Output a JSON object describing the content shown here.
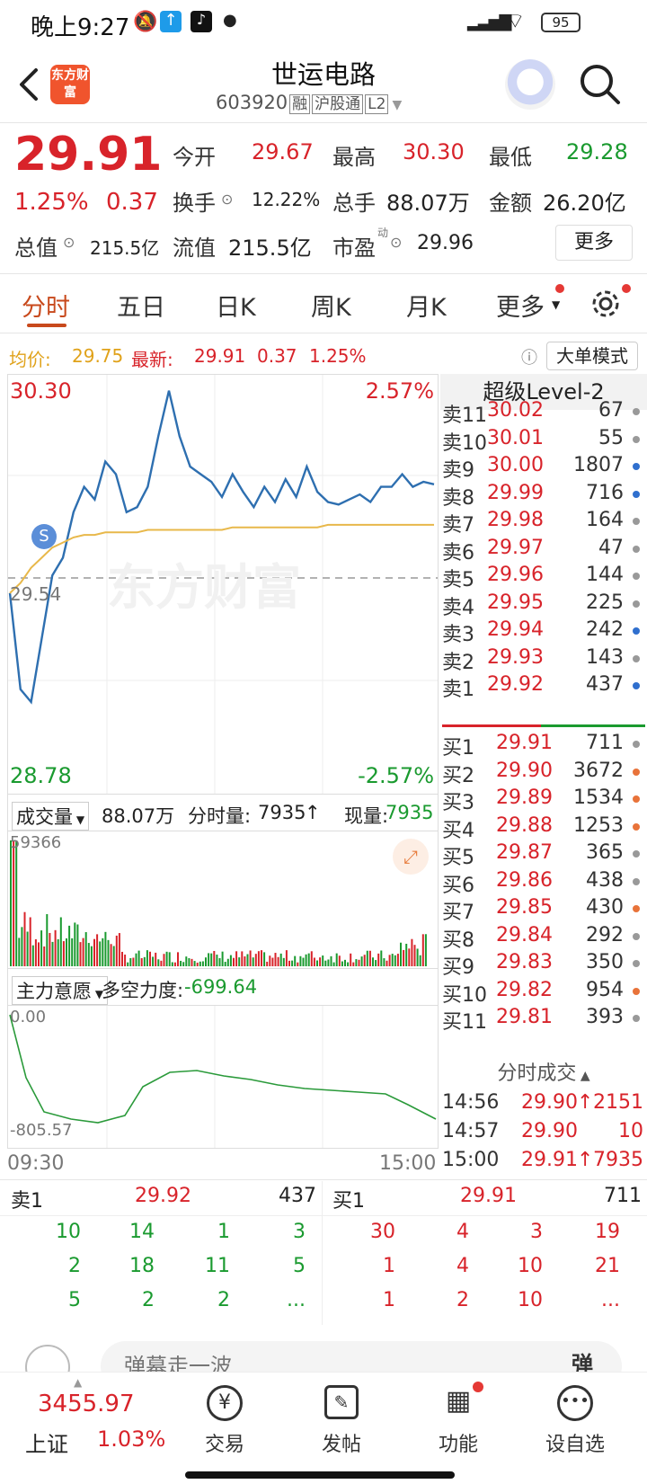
{
  "status": {
    "time": "晚上9:27",
    "battery": "95"
  },
  "header": {
    "logo_text": "东方财富",
    "stock_name": "世运电路",
    "stock_code": "603920",
    "tags": [
      "融",
      "沪股通",
      "L2"
    ]
  },
  "quote": {
    "price": "29.91",
    "change_pct": "1.25%",
    "change": "0.37",
    "fields": [
      {
        "label": "今开",
        "value": "29.67",
        "color": "red"
      },
      {
        "label": "最高",
        "value": "30.30",
        "color": "red"
      },
      {
        "label": "最低",
        "value": "29.28",
        "color": "green"
      },
      {
        "label": "换手",
        "value": "12.22%",
        "color": "dark"
      },
      {
        "label": "总手",
        "value": "88.07万",
        "color": "dark"
      },
      {
        "label": "金额",
        "value": "26.20亿",
        "color": "dark"
      },
      {
        "label": "总值",
        "value": "215.5亿",
        "color": "dark"
      },
      {
        "label": "流值",
        "value": "215.5亿",
        "color": "dark"
      },
      {
        "label": "市盈",
        "value": "29.96",
        "color": "dark"
      }
    ],
    "pe_sup": "动",
    "more_label": "更多"
  },
  "tabs": [
    "分时",
    "五日",
    "日K",
    "周K",
    "月K",
    "更多"
  ],
  "infobar": {
    "avg_label": "均价:",
    "avg": "29.75",
    "latest_label": "最新:",
    "latest": "29.91",
    "chg": "0.37",
    "pct": "1.25%",
    "mode_button": "大单模式"
  },
  "chart": {
    "high": "30.30",
    "high_pct": "2.57%",
    "low": "28.78",
    "low_pct": "-2.57%",
    "ref": "29.54",
    "watermark": "东方财富",
    "marker": "S"
  },
  "volume": {
    "label": "成交量",
    "total": "88.07万",
    "minute_label": "分时量:",
    "minute_val": "7935",
    "now_label": "现量:",
    "now_val": "7935",
    "max": "59366"
  },
  "force": {
    "label": "主力意愿",
    "title": "多空力度:",
    "value": "-699.64",
    "top": "0.00",
    "bottom": "-805.57",
    "t_start": "09:30",
    "t_end": "15:00"
  },
  "orderbook": {
    "title": "超级Level-2",
    "sells": [
      {
        "label": "卖11",
        "price": "30.02",
        "vol": "67",
        "dot": "gray"
      },
      {
        "label": "卖10",
        "price": "30.01",
        "vol": "55",
        "dot": "gray"
      },
      {
        "label": "卖9",
        "price": "30.00",
        "vol": "1807",
        "dot": "blue"
      },
      {
        "label": "卖8",
        "price": "29.99",
        "vol": "716",
        "dot": "blue"
      },
      {
        "label": "卖7",
        "price": "29.98",
        "vol": "164",
        "dot": "gray"
      },
      {
        "label": "卖6",
        "price": "29.97",
        "vol": "47",
        "dot": "gray"
      },
      {
        "label": "卖5",
        "price": "29.96",
        "vol": "144",
        "dot": "gray"
      },
      {
        "label": "卖4",
        "price": "29.95",
        "vol": "225",
        "dot": "gray"
      },
      {
        "label": "卖3",
        "price": "29.94",
        "vol": "242",
        "dot": "blue"
      },
      {
        "label": "卖2",
        "price": "29.93",
        "vol": "143",
        "dot": "gray"
      },
      {
        "label": "卖1",
        "price": "29.92",
        "vol": "437",
        "dot": "blue"
      }
    ],
    "buys": [
      {
        "label": "买1",
        "price": "29.91",
        "vol": "711",
        "dot": "gray"
      },
      {
        "label": "买2",
        "price": "29.90",
        "vol": "3672",
        "dot": "orange"
      },
      {
        "label": "买3",
        "price": "29.89",
        "vol": "1534",
        "dot": "orange"
      },
      {
        "label": "买4",
        "price": "29.88",
        "vol": "1253",
        "dot": "orange"
      },
      {
        "label": "买5",
        "price": "29.87",
        "vol": "365",
        "dot": "gray"
      },
      {
        "label": "买6",
        "price": "29.86",
        "vol": "438",
        "dot": "gray"
      },
      {
        "label": "买7",
        "price": "29.85",
        "vol": "430",
        "dot": "orange"
      },
      {
        "label": "买8",
        "price": "29.84",
        "vol": "292",
        "dot": "gray"
      },
      {
        "label": "买9",
        "price": "29.83",
        "vol": "350",
        "dot": "gray"
      },
      {
        "label": "买10",
        "price": "29.82",
        "vol": "954",
        "dot": "orange"
      },
      {
        "label": "买11",
        "price": "29.81",
        "vol": "393",
        "dot": "gray"
      }
    ],
    "trades_title": "分时成交",
    "trades": [
      {
        "time": "14:56",
        "price": "29.90",
        "arrow": "↑",
        "vol": "2151"
      },
      {
        "time": "14:57",
        "price": "29.90",
        "arrow": "",
        "vol": "10"
      },
      {
        "time": "15:00",
        "price": "29.91",
        "arrow": "↑",
        "vol": "7935"
      }
    ]
  },
  "queue": {
    "sell_label": "卖1",
    "sell_price": "29.92",
    "sell_vol": "437",
    "buy_label": "买1",
    "buy_price": "29.91",
    "buy_vol": "711",
    "sell_rows": [
      [
        "10",
        "14",
        "1",
        "3"
      ],
      [
        "2",
        "18",
        "11",
        "5"
      ],
      [
        "5",
        "2",
        "2",
        "..."
      ]
    ],
    "buy_rows": [
      [
        "30",
        "4",
        "3",
        "19"
      ],
      [
        "1",
        "4",
        "10",
        "21"
      ],
      [
        "1",
        "2",
        "10",
        "..."
      ]
    ]
  },
  "comment": {
    "placeholder": "弹幕走一波",
    "button": "弹"
  },
  "bottom": {
    "index_value": "3455.97",
    "index_name": "上证",
    "index_pct": "1.03%",
    "nav": [
      "交易",
      "发帖",
      "功能",
      "设自选"
    ]
  },
  "chart_data": {
    "type": "line",
    "x_range": [
      "09:30",
      "15:00"
    ],
    "ylim": [
      28.78,
      30.3
    ],
    "ref_price": 29.54,
    "series": [
      {
        "values": [
          29.48,
          29.1,
          29.05,
          29.3,
          29.55,
          29.62,
          29.8,
          29.9,
          29.85,
          30.0,
          29.95,
          29.8,
          29.82,
          29.9,
          30.1,
          30.28,
          30.1,
          29.98,
          29.95,
          29.92,
          29.86,
          29.95,
          29.88,
          29.82,
          29.9,
          29.84,
          29.93,
          29.86,
          29.98,
          29.88,
          29.84,
          29.83,
          29.85,
          29.87,
          29.84,
          29.9,
          29.9,
          29.95,
          29.9,
          29.92,
          29.91
        ]
      },
      {
        "values": [
          29.48,
          29.52,
          29.58,
          29.62,
          29.66,
          29.68,
          29.7,
          29.71,
          29.71,
          29.72,
          29.72,
          29.72,
          29.72,
          29.73,
          29.73,
          29.73,
          29.73,
          29.73,
          29.73,
          29.73,
          29.73,
          29.74,
          29.74,
          29.74,
          29.74,
          29.74,
          29.74,
          29.74,
          29.74,
          29.74,
          29.75,
          29.75,
          29.75,
          29.75,
          29.75,
          29.75,
          29.75,
          29.75,
          29.75,
          29.75,
          29.75
        ]
      }
    ],
    "volume_max": 59366,
    "force_range": [
      -805.57,
      0.0
    ]
  }
}
